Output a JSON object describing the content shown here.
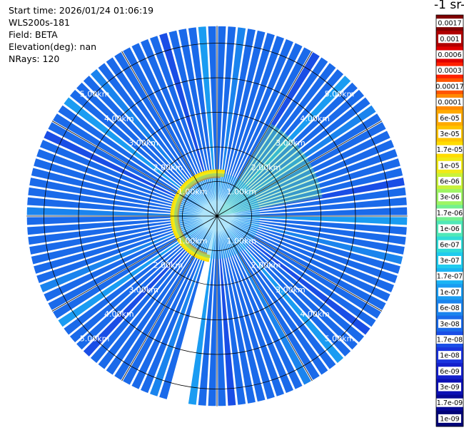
{
  "header": {
    "start_time": "Start time: 2026/01/24 01:06:19",
    "instrument": "WLS200s-181",
    "field": "Field: BETA",
    "elevation": "Elevation(deg): nan",
    "nrays": "NRays: 120"
  },
  "colorbar": {
    "unit_label": "-1 sr-",
    "ticks": [
      "0.0017",
      "0.001",
      "0.0006",
      "0.0003",
      "0.00017",
      "0.0001",
      "6e-05",
      "3e-05",
      "1.7e-05",
      "1e-05",
      "6e-06",
      "3e-06",
      "1.7e-06",
      "1e-06",
      "6e-07",
      "3e-07",
      "1.7e-07",
      "1e-07",
      "6e-08",
      "3e-08",
      "1.7e-08",
      "1e-08",
      "6e-09",
      "3e-09",
      "1.7e-09",
      "1e-09"
    ],
    "colors": [
      "#800000",
      "#b00000",
      "#e00000",
      "#ff2000",
      "#ff5500",
      "#ff8a00",
      "#ffaa00",
      "#ffc400",
      "#ffdc00",
      "#f0ea18",
      "#c9f23a",
      "#9ef564",
      "#74f090",
      "#50e8b8",
      "#30dcd8",
      "#20ccee",
      "#1ab4f4",
      "#1a9cf2",
      "#1a84ee",
      "#1a6aea",
      "#1a4ee6",
      "#1a34de",
      "#1420cc",
      "#0c10b4",
      "#060896",
      "#020478"
    ]
  },
  "chart_data": {
    "type": "heatmap",
    "projection": "polar PPI scan",
    "nrays": 120,
    "max_range_km": 5.5,
    "range_labels": [
      "1.00km",
      "2.00km",
      "3.00km",
      "4.00km",
      "5.00km"
    ],
    "rings_km": [
      1,
      2,
      3,
      4,
      5
    ],
    "field": "BETA",
    "color_scale": "log",
    "value_range": [
      1e-09,
      0.0017
    ],
    "dominant_value": "3e-08",
    "features": [
      {
        "description_value": "1e-05",
        "near_range_km": 1.0,
        "sector": "west-north arc"
      },
      {
        "description_value": "1.7e-06",
        "sector": "east near range"
      },
      {
        "description_value": "blank (no data)",
        "sector": "south-southwest ray"
      }
    ]
  }
}
